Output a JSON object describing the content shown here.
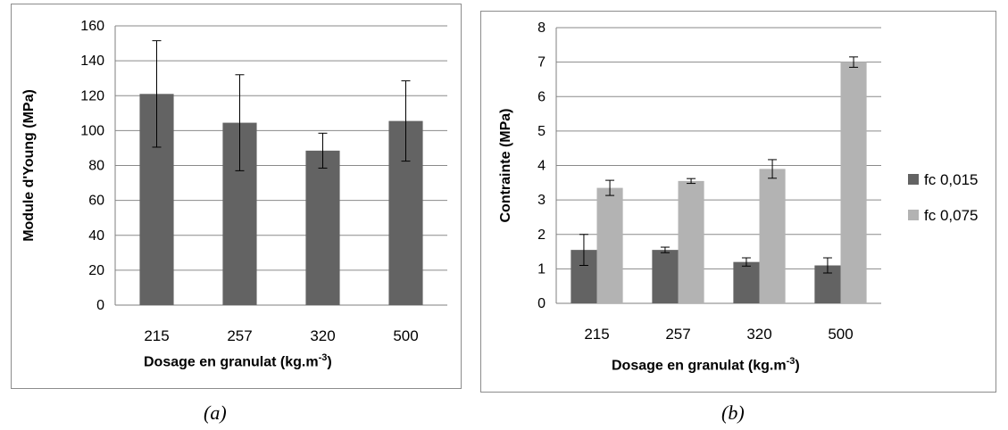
{
  "chart_data": [
    {
      "type": "bar",
      "panel_caption": "(a)",
      "categories": [
        "215",
        "257",
        "320",
        "500"
      ],
      "series": [
        {
          "values": [
            121,
            104.5,
            88.5,
            105.5
          ],
          "errors": [
            30.5,
            27.5,
            10,
            23
          ],
          "color": "#636363"
        }
      ],
      "xlabel": "Dosage en granulat (kg.m",
      "xlabel_sup": "-3",
      "xlabel_tail": ")",
      "ylabel": "Module d'Young (MPa)",
      "ylim": [
        0,
        160
      ],
      "yticks": [
        "0",
        "20",
        "40",
        "60",
        "80",
        "100",
        "120",
        "140",
        "160"
      ],
      "grid": true
    },
    {
      "type": "bar",
      "panel_caption": "(b)",
      "categories": [
        "215",
        "257",
        "320",
        "500"
      ],
      "series": [
        {
          "name": "fc 0,015",
          "values": [
            1.55,
            1.55,
            1.2,
            1.1
          ],
          "errors": [
            0.45,
            0.08,
            0.12,
            0.22
          ],
          "color": "#636363"
        },
        {
          "name": "fc 0,075",
          "values": [
            3.35,
            3.55,
            3.9,
            7.0
          ],
          "errors": [
            0.22,
            0.07,
            0.27,
            0.15
          ],
          "color": "#b3b3b3"
        }
      ],
      "xlabel": "Dosage en granulat (kg.m",
      "xlabel_sup": "-3",
      "xlabel_tail": ")",
      "ylabel": "Contrainte (MPa)",
      "ylim": [
        0,
        8
      ],
      "yticks": [
        "0",
        "1",
        "2",
        "3",
        "4",
        "5",
        "6",
        "7",
        "8"
      ],
      "grid": true,
      "legend_position": "right"
    }
  ]
}
